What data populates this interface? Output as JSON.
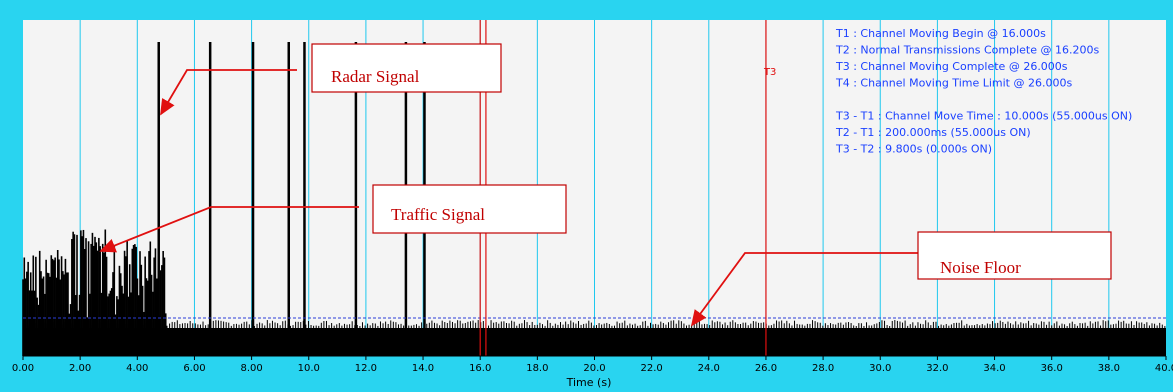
{
  "chart_data": {
    "type": "line",
    "title": "",
    "xlabel": "Time (s)",
    "ylabel": "",
    "xlim": [
      0,
      40
    ],
    "x_ticks": [
      "0.00",
      "2.00",
      "4.00",
      "6.00",
      "8.00",
      "10.0",
      "12.0",
      "14.0",
      "16.0",
      "18.0",
      "20.0",
      "22.0",
      "24.0",
      "26.0",
      "28.0",
      "30.0",
      "32.0",
      "34.0",
      "36.0",
      "38.0",
      "40.0"
    ],
    "radar_pulses_s": [
      4.75,
      6.55,
      8.05,
      9.3,
      9.85,
      11.65,
      13.4,
      14.05
    ],
    "traffic_signal_range_s": [
      0,
      5.0
    ],
    "noise_floor_range_s": [
      0,
      40
    ],
    "markers": [
      {
        "name": "T1",
        "x": 16.0,
        "label": ""
      },
      {
        "name": "T2",
        "x": 16.2,
        "label": ""
      },
      {
        "name": "T3",
        "x": 26.0,
        "label": "T3"
      }
    ],
    "info_lines": [
      "T1 : Channel Moving Begin @ 16.000s",
      "T2 : Normal Transmissions Complete @ 16.200s",
      "T3 : Channel Moving Complete @ 26.000s",
      "T4 : Channel Moving Time Limit @ 26.000s",
      "",
      "T3 - T1 : Channel Move Time : 10.000s (55.000us ON)",
      "T2 - T1 : 200.000ms (55.000us ON)",
      "T3 - T2 : 9.800s (0.000s ON)"
    ],
    "annotations": [
      {
        "text": "Radar Signal"
      },
      {
        "text": "Traffic Signal"
      },
      {
        "text": "Noise Floor"
      }
    ],
    "colors": {
      "background": "#29d4f0",
      "plot_area": "#f4f4f4",
      "gridlines": "#1ec8ee",
      "signal": "#000000",
      "markers": "#e01010",
      "info_text": "#1a40ff",
      "annotation": "#c00000"
    }
  }
}
